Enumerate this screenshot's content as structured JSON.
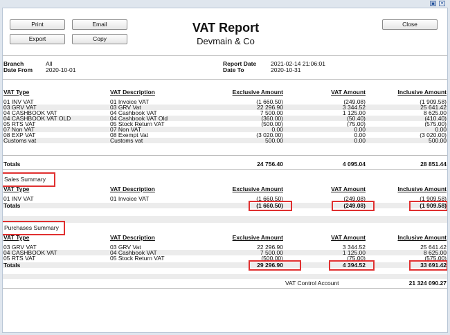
{
  "window": {
    "restore_glyph": "▣",
    "close_glyph": "✕"
  },
  "buttons": {
    "print": "Print",
    "email": "Email",
    "export": "Export",
    "copy": "Copy",
    "close": "Close"
  },
  "report": {
    "title": "VAT Report",
    "company": "Devmain & Co"
  },
  "meta": {
    "branch_label": "Branch",
    "branch_value": "All",
    "date_from_label": "Date From",
    "date_from_value": "2020-10-01",
    "report_date_label": "Report Date",
    "report_date_value": "2021-02-14 21:06:01",
    "date_to_label": "Date To",
    "date_to_value": "2020-10-31"
  },
  "columns": {
    "type": "VAT Type",
    "desc": "VAT Description",
    "excl": "Exclusive Amount",
    "vat": "VAT Amount",
    "incl": "Inclusive Amount"
  },
  "main_rows": [
    {
      "type": "01 INV VAT",
      "desc": "01 Invoice VAT",
      "excl": "(1 660.50)",
      "vat": "(249.08)",
      "incl": "(1 909.58)"
    },
    {
      "type": "03 GRV VAT",
      "desc": "03 GRV Vat",
      "excl": "22 296.90",
      "vat": "3 344.52",
      "incl": "25 641.42"
    },
    {
      "type": "04 CASHBOOK VAT",
      "desc": "04 Cashbook VAT",
      "excl": "7 500.00",
      "vat": "1 125.00",
      "incl": "8 625.00"
    },
    {
      "type": "04 CASHBOOK VAT OLD",
      "desc": "04 Cashbook VAT Old",
      "excl": "(360.00)",
      "vat": "(50.40)",
      "incl": "(410.40)"
    },
    {
      "type": "05 RTS VAT",
      "desc": "05 Stock Return VAT",
      "excl": "(500.00)",
      "vat": "(75.00)",
      "incl": "(575.00)"
    },
    {
      "type": "07 Non VAT",
      "desc": "07 Non VAT",
      "excl": "0.00",
      "vat": "0.00",
      "incl": "0.00"
    },
    {
      "type": "08 EXP VAT",
      "desc": "08 Exempt Vat",
      "excl": "(3 020.00)",
      "vat": "0.00",
      "incl": "(3 020.00)"
    },
    {
      "type": "Customs vat",
      "desc": "Customs vat",
      "excl": "500.00",
      "vat": "0.00",
      "incl": "500.00"
    }
  ],
  "totals": {
    "label": "Totals",
    "excl": "24 756.40",
    "vat": "4 095.04",
    "incl": "28 851.44"
  },
  "sales": {
    "title": "Sales Summary",
    "rows": [
      {
        "type": "01 INV VAT",
        "desc": "01 Invoice VAT",
        "excl": "(1 660.50)",
        "vat": "(249.08)",
        "incl": "(1 909.58)"
      }
    ],
    "totals": {
      "label": "Totals",
      "excl": "(1 660.50)",
      "vat": "(249.08)",
      "incl": "(1 909.58)"
    }
  },
  "purchases": {
    "title": "Purchases Summary",
    "rows": [
      {
        "type": "03 GRV VAT",
        "desc": "03 GRV Vat",
        "excl": "22 296.90",
        "vat": "3 344.52",
        "incl": "25 641.42"
      },
      {
        "type": "04 CASHBOOK VAT",
        "desc": "04 Cashbook VAT",
        "excl": "7 500.00",
        "vat": "1 125.00",
        "incl": "8 625.00"
      },
      {
        "type": "05 RTS VAT",
        "desc": "05 Stock Return VAT",
        "excl": "(500.00)",
        "vat": "(75.00)",
        "incl": "(575.00)"
      }
    ],
    "totals": {
      "label": "Totals",
      "excl": "29 296.90",
      "vat": "4 394.52",
      "incl": "33 691.42"
    }
  },
  "control": {
    "label": "VAT Control Account",
    "value": "21 324 090.27"
  }
}
